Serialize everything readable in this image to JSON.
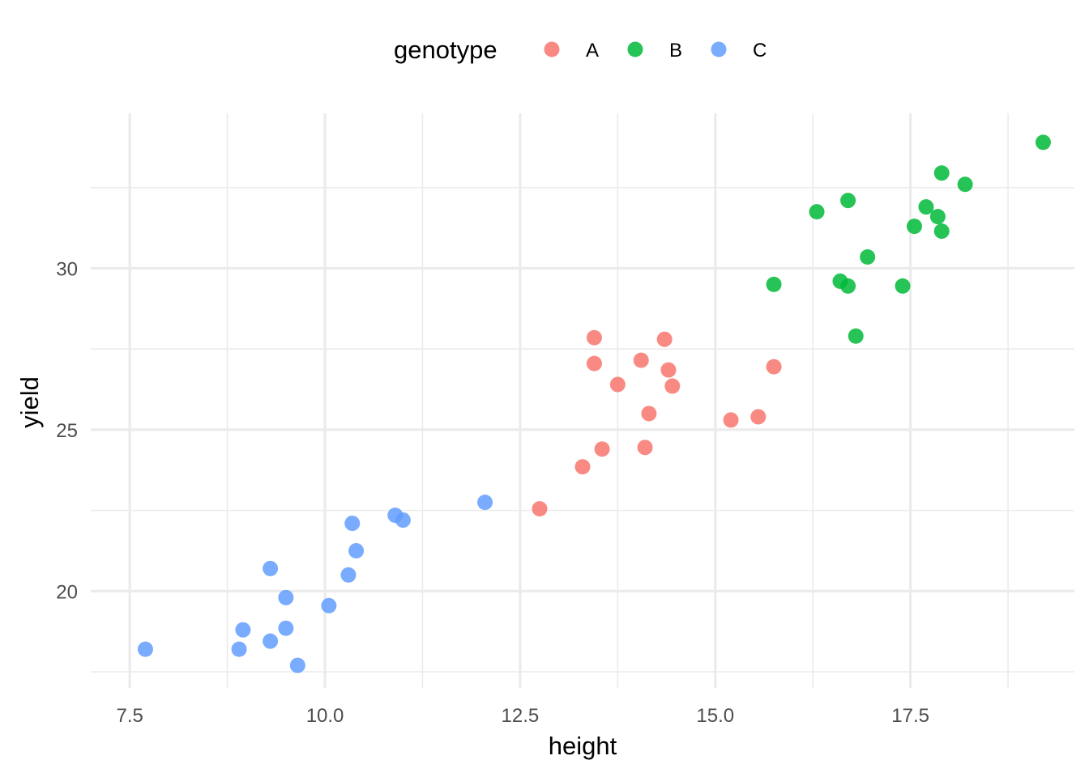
{
  "chart_data": {
    "type": "scatter",
    "xlabel": "height",
    "ylabel": "yield",
    "xlim": [
      7.0,
      19.6
    ],
    "ylim": [
      17.0,
      34.8
    ],
    "x_major_ticks": [
      7.5,
      10.0,
      12.5,
      15.0,
      17.5
    ],
    "x_tick_labels": [
      "7.5",
      "10.0",
      "12.5",
      "15.0",
      "17.5"
    ],
    "x_minor_ticks": [
      8.75,
      11.25,
      13.75,
      16.25,
      18.75
    ],
    "y_major_ticks": [
      20,
      25,
      30
    ],
    "y_tick_labels": [
      "20",
      "25",
      "30"
    ],
    "y_minor_ticks": [
      17.5,
      22.5,
      27.5,
      32.5
    ],
    "grid": true,
    "legend": {
      "title": "genotype",
      "position": "top"
    },
    "series": [
      {
        "name": "A",
        "color": "#F8766D",
        "points": [
          [
            13.45,
            27.85
          ],
          [
            14.35,
            27.8
          ],
          [
            14.05,
            27.15
          ],
          [
            13.45,
            27.05
          ],
          [
            14.4,
            26.85
          ],
          [
            15.75,
            26.95
          ],
          [
            13.75,
            26.4
          ],
          [
            14.45,
            26.35
          ],
          [
            14.15,
            25.5
          ],
          [
            15.55,
            25.4
          ],
          [
            15.2,
            25.3
          ],
          [
            13.55,
            24.4
          ],
          [
            14.1,
            24.45
          ],
          [
            13.3,
            23.85
          ],
          [
            12.75,
            22.55
          ]
        ]
      },
      {
        "name": "B",
        "color": "#00BA38",
        "points": [
          [
            19.2,
            33.9
          ],
          [
            17.9,
            32.95
          ],
          [
            18.2,
            32.6
          ],
          [
            16.7,
            32.1
          ],
          [
            17.7,
            31.9
          ],
          [
            16.3,
            31.75
          ],
          [
            17.85,
            31.6
          ],
          [
            17.55,
            31.3
          ],
          [
            17.9,
            31.15
          ],
          [
            16.95,
            30.35
          ],
          [
            15.75,
            29.5
          ],
          [
            16.6,
            29.6
          ],
          [
            16.7,
            29.45
          ],
          [
            17.4,
            29.45
          ],
          [
            16.8,
            27.9
          ]
        ]
      },
      {
        "name": "C",
        "color": "#619CFF",
        "points": [
          [
            12.05,
            22.75
          ],
          [
            10.9,
            22.35
          ],
          [
            11.0,
            22.2
          ],
          [
            10.35,
            22.1
          ],
          [
            10.4,
            21.25
          ],
          [
            9.3,
            20.7
          ],
          [
            10.3,
            20.5
          ],
          [
            9.5,
            19.8
          ],
          [
            10.05,
            19.55
          ],
          [
            8.95,
            18.8
          ],
          [
            9.5,
            18.85
          ],
          [
            9.3,
            18.45
          ],
          [
            7.7,
            18.2
          ],
          [
            8.9,
            18.2
          ],
          [
            9.65,
            17.7
          ]
        ]
      }
    ]
  }
}
